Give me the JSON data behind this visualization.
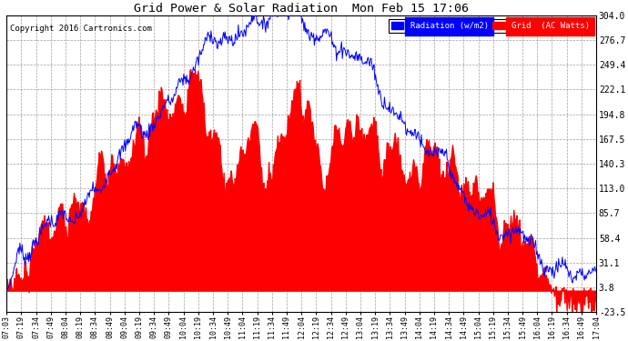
{
  "title": "Grid Power & Solar Radiation  Mon Feb 15 17:06",
  "copyright": "Copyright 2016 Cartronics.com",
  "legend_labels": [
    "Radiation (w/m2)",
    "Grid  (AC Watts)"
  ],
  "legend_colors": [
    "blue",
    "red"
  ],
  "yticks": [
    -23.5,
    3.8,
    31.1,
    58.4,
    85.7,
    113.0,
    140.3,
    167.5,
    194.8,
    222.1,
    249.4,
    276.7,
    304.0
  ],
  "xtick_labels": [
    "07:03",
    "07:19",
    "07:34",
    "07:49",
    "08:04",
    "08:19",
    "08:34",
    "08:49",
    "09:04",
    "09:19",
    "09:34",
    "09:49",
    "10:04",
    "10:19",
    "10:34",
    "10:49",
    "11:04",
    "11:19",
    "11:34",
    "11:49",
    "12:04",
    "12:19",
    "12:34",
    "12:49",
    "13:04",
    "13:19",
    "13:34",
    "13:49",
    "14:04",
    "14:19",
    "14:34",
    "14:49",
    "15:04",
    "15:19",
    "15:34",
    "15:49",
    "16:04",
    "16:19",
    "16:34",
    "16:49",
    "17:04"
  ],
  "background_color": "#ffffff",
  "grid_color": "#aaaaaa",
  "radiation_color": "blue",
  "grid_power_color": "red",
  "ymin": -23.5,
  "ymax": 304.0
}
